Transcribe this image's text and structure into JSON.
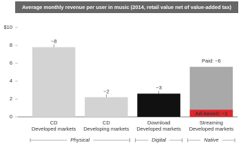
{
  "chart_data": {
    "type": "bar",
    "title": "Average monthly revenue per user in music (2014, retail value net of value-added tax)",
    "categories": [
      [
        "CD",
        "Developed markets"
      ],
      [
        "CD",
        "Developing markets"
      ],
      [
        "Download",
        "Developed markets"
      ],
      [
        "Streaming",
        "Developed markets"
      ]
    ],
    "values": [
      7.8,
      2.2,
      2.6,
      5.6
    ],
    "value_labels": [
      "~8",
      "~2",
      "~3",
      "Paid: ~6"
    ],
    "colors": [
      "#d3d3d3",
      "#d3d3d3",
      "#111111",
      "#a9a9a9"
    ],
    "overlay": {
      "values": [
        null,
        null,
        null,
        0.8
      ],
      "value_labels": [
        null,
        null,
        null,
        "Ad-based: ~1"
      ],
      "color": "#e0262b"
    },
    "groups": [
      {
        "name": "Physical",
        "count": 2
      },
      {
        "name": "Digital",
        "count": 1
      },
      {
        "name": "Native",
        "count": 1
      }
    ],
    "ylim": [
      0,
      10
    ],
    "yticks": [
      0,
      2,
      4,
      6,
      8,
      {
        "value": 10,
        "label": "$10"
      }
    ]
  }
}
